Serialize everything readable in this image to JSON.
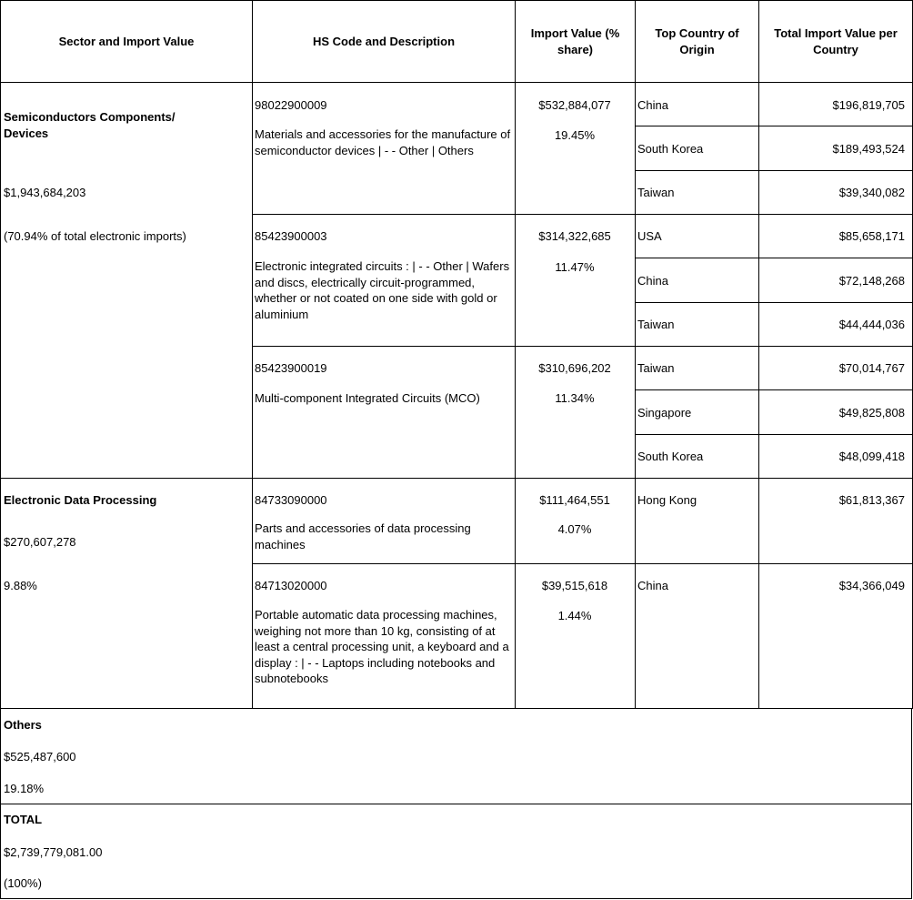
{
  "header": [
    "Sector and  Import Value",
    "HS Code and Description",
    "Import Value (% share)",
    "Top Country of Origin",
    "Total Import Value per Country"
  ],
  "sectors": [
    {
      "title": "Semiconductors Components/ Devices",
      "value": "$1,943,684,203",
      "share": "(70.94% of total electronic imports)",
      "items": [
        {
          "code": "98022900009",
          "description": "Materials and accessories for the manufacture of semiconductor devices  |  - - Other  |  Others",
          "value": "$532,884,077",
          "share": "19.45%",
          "countries": [
            {
              "name": "China",
              "value": "$196,819,705"
            },
            {
              "name": "South Korea",
              "value": "$189,493,524"
            },
            {
              "name": "Taiwan",
              "value": "$39,340,082"
            }
          ]
        },
        {
          "code": "85423900003",
          "description": "Electronic integrated circuits :  |  - -  Other  |  Wafers and discs, electrically circuit-programmed, whether or not coated on one side with gold or aluminium",
          "value": "$314,322,685",
          "share": "11.47%",
          "countries": [
            {
              "name": "USA",
              "value": "$85,658,171"
            },
            {
              "name": "China",
              "value": "$72,148,268"
            },
            {
              "name": "Taiwan",
              "value": "$44,444,036"
            }
          ]
        },
        {
          "code": "85423900019",
          "description": "Multi-component Integrated Circuits (MCO)",
          "value": "$310,696,202",
          "share": "11.34%",
          "countries": [
            {
              "name": "Taiwan",
              "value": "$70,014,767"
            },
            {
              "name": "Singapore",
              "value": "$49,825,808"
            },
            {
              "name": "South Korea",
              "value": "$48,099,418"
            }
          ]
        }
      ]
    },
    {
      "title": "Electronic Data Processing",
      "value": "$270,607,278",
      "share": "9.88%",
      "items": [
        {
          "code": "84733090000",
          "description": "Parts and accessories of data processing machines",
          "value": "$111,464,551",
          "share": "4.07%",
          "countries": [
            {
              "name": "Hong Kong",
              "value": "$61,813,367"
            }
          ]
        },
        {
          "code": "84713020000",
          "description": "Portable automatic data processing machines, weighing not more than 10 kg, consisting of at least a central processing unit, a keyboard and a display :  |  - - Laptops including notebooks and subnotebooks",
          "value": "$39,515,618",
          "share": "1.44%",
          "countries": [
            {
              "name": "China",
              "value": "$34,366,049"
            }
          ]
        }
      ]
    }
  ],
  "others": {
    "title": "Others",
    "value": "$525,487,600",
    "share": "19.18%"
  },
  "total": {
    "title": "TOTAL",
    "value": "$2,739,779,081.00",
    "share": "(100%)"
  }
}
